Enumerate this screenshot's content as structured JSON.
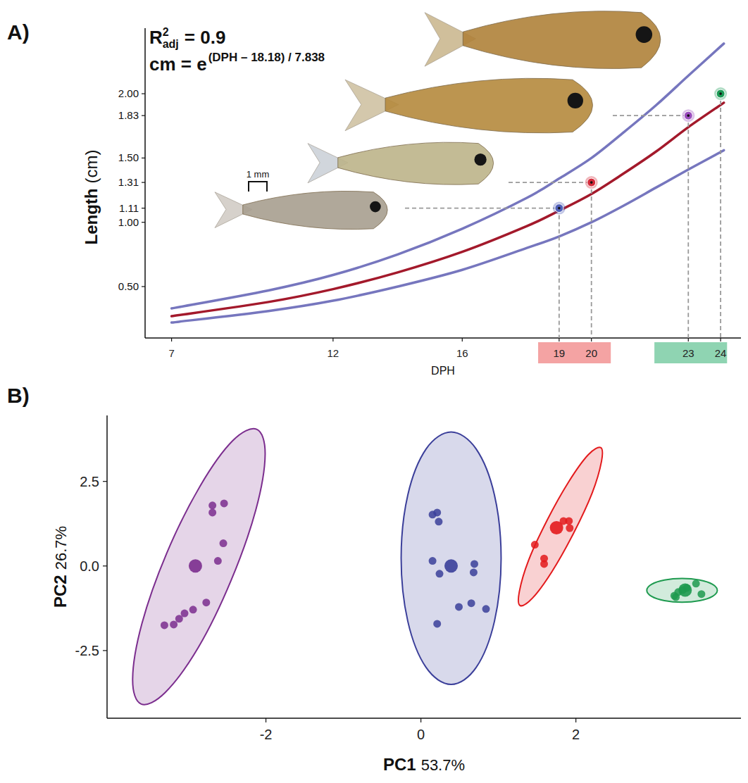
{
  "chart_data": [
    {
      "panel_label": "A)",
      "type": "line",
      "annotation": {
        "r2": {
          "base": "R",
          "sup": "2",
          "sub": "adj",
          "text": "= 0.9"
        },
        "equation": {
          "base": "cm = e",
          "sup": "(DPH – 18.18) / 7.838"
        },
        "scale_bar": "1 mm"
      },
      "x_label": "DPH",
      "y_label": "Length",
      "y_label_unit": "(cm)",
      "xlim": [
        6.18,
        24.63
      ],
      "xticks": [
        7,
        12,
        16,
        19,
        20,
        23,
        24
      ],
      "ylim": [
        0.1,
        2.51
      ],
      "yticks": [
        {
          "value": 0.5,
          "label": "0.50"
        },
        {
          "value": 1,
          "label": "1.00"
        },
        1.11,
        1.31,
        {
          "value": 1.5,
          "label": "1.50"
        },
        1.83,
        {
          "value": 2,
          "label": "2.00"
        }
      ],
      "x_bands": [
        {
          "xmin": 18.35,
          "xmax": 20.6,
          "color": "#f4a3a3"
        },
        {
          "xmin": 21.95,
          "xmax": 24.2,
          "color": "#8fd4b2"
        }
      ],
      "series": [
        {
          "type": "line",
          "color": "#7676be",
          "x": [
            7,
            10,
            12,
            14,
            16,
            18,
            19,
            20,
            21,
            22,
            23,
            24.1
          ],
          "values": [
            0.33,
            0.47,
            0.59,
            0.75,
            0.95,
            1.19,
            1.34,
            1.5,
            1.7,
            1.91,
            2.14,
            2.39
          ]
        },
        {
          "type": "line",
          "color": "#a3192b",
          "x": [
            7,
            10,
            12,
            14,
            16,
            18,
            19,
            20,
            21,
            22,
            23,
            24.1
          ],
          "values": [
            0.27,
            0.38,
            0.48,
            0.61,
            0.77,
            0.97,
            1.09,
            1.22,
            1.38,
            1.55,
            1.74,
            1.93
          ]
        },
        {
          "type": "line",
          "color": "#7676be",
          "x": [
            7,
            10,
            12,
            14,
            16,
            18,
            19,
            20,
            21,
            22,
            23,
            24.1
          ],
          "values": [
            0.22,
            0.31,
            0.39,
            0.5,
            0.63,
            0.8,
            0.89,
            1.0,
            1.13,
            1.27,
            1.41,
            1.56
          ]
        },
        {
          "type": "scatter",
          "marker": "circle",
          "colors": [
            "#4f5fb8",
            "#d42a3a",
            "#9b4dbd",
            "#1b9a55"
          ],
          "x": [
            19,
            20,
            23,
            24
          ],
          "values": [
            1.11,
            1.31,
            1.83,
            2.0
          ]
        }
      ]
    },
    {
      "panel_label": "B)",
      "type": "scatter",
      "x_label": "PC1",
      "x_label_variance": "53.7%",
      "y_label": "PC2",
      "y_label_variance": "26.7%",
      "xlim": [
        -4.05,
        4.13
      ],
      "xticks": [
        -2,
        0,
        2
      ],
      "ylim": [
        -4.5,
        4.45
      ],
      "yticks": [
        -2.5,
        {
          "value": 0,
          "label": "0.0"
        },
        2.5
      ],
      "series": [
        {
          "color": "#7b2d8e",
          "marker": "circle",
          "x": [
            -2.69,
            -2.69,
            -2.54,
            -2.55,
            -2.62,
            -2.77,
            -2.94,
            -3.05,
            -3.12,
            -3.19,
            -3.31
          ],
          "values": [
            1.79,
            1.58,
            1.85,
            0.67,
            0.15,
            -1.08,
            -1.29,
            -1.4,
            -1.56,
            -1.73,
            -1.75
          ],
          "centroid": {
            "x": -2.91,
            "y": 0
          },
          "ellipse": {
            "x": [
              -2.12,
              -2.01,
              -2.13,
              -2.45,
              -2.87,
              -3.3,
              -3.61,
              -3.72,
              -3.6,
              -3.28,
              -2.85,
              -2.43
            ],
            "y": [
              4.04,
              3.3,
              1.66,
              -0.43,
              -2.4,
              -3.74,
              -4.08,
              -3.34,
              -1.7,
              0.38,
              2.36,
              3.7
            ]
          }
        },
        {
          "color": "#3b3f9a",
          "marker": "circle",
          "x": [
            0.15,
            0.21,
            0.23,
            0.15,
            0.24,
            0.69,
            0.68,
            0.49,
            0.65,
            0.84,
            0.21
          ],
          "values": [
            1.52,
            1.58,
            1.31,
            0.15,
            -0.23,
            0.06,
            -0.19,
            -1.21,
            -1.1,
            -1.27,
            -1.71
          ],
          "centroid": {
            "x": 0.39,
            "y": 0
          },
          "ellipse": {
            "x": [
              1.035,
              0.949,
              0.713,
              0.39,
              0.067,
              -0.169,
              -0.255,
              -0.169,
              0.067,
              0.39,
              0.713,
              0.949
            ],
            "y": [
              0.23,
              2.1,
              3.46,
              3.96,
              3.46,
              2.1,
              0.23,
              -1.635,
              -3.0,
              -3.5,
              -3.0,
              -1.635
            ]
          }
        },
        {
          "color": "#e31a1c",
          "marker": "circle",
          "x": [
            1.47,
            1.59,
            1.59,
            1.84,
            1.91,
            1.92
          ],
          "values": [
            0.63,
            0.22,
            0.06,
            1.33,
            1.33,
            1.12
          ],
          "centroid": {
            "x": 1.75,
            "y": 1.13
          },
          "ellipse": {
            "x": [
              2.32,
              2.33,
              2.21,
              1.97,
              1.69,
              1.44,
              1.28,
              1.27,
              1.39,
              1.63,
              1.91,
              2.16
            ],
            "y": [
              3.5,
              3.09,
              2.16,
              0.97,
              -0.17,
              -0.95,
              -1.17,
              -0.76,
              0.17,
              1.36,
              2.5,
              3.29
            ]
          }
        },
        {
          "color": "#1e9a4f",
          "marker": "circle",
          "x": [
            3.27,
            3.32,
            3.38,
            3.43,
            3.55,
            3.62,
            3.29
          ],
          "values": [
            -0.88,
            -0.77,
            -0.71,
            -0.65,
            -0.52,
            -0.83,
            -0.92
          ],
          "centroid": {
            "x": 3.41,
            "y": -0.71
          },
          "ellipse": {
            "x": [
              3.825,
              3.764,
              3.598,
              3.37,
              3.142,
              2.976,
              2.915,
              2.976,
              3.142,
              3.37,
              3.598,
              3.764
            ],
            "y": [
              -0.72,
              -0.545,
              -0.417,
              -0.37,
              -0.417,
              -0.545,
              -0.72,
              -0.895,
              -1.023,
              -1.07,
              -1.023,
              -0.895
            ]
          }
        }
      ]
    }
  ]
}
